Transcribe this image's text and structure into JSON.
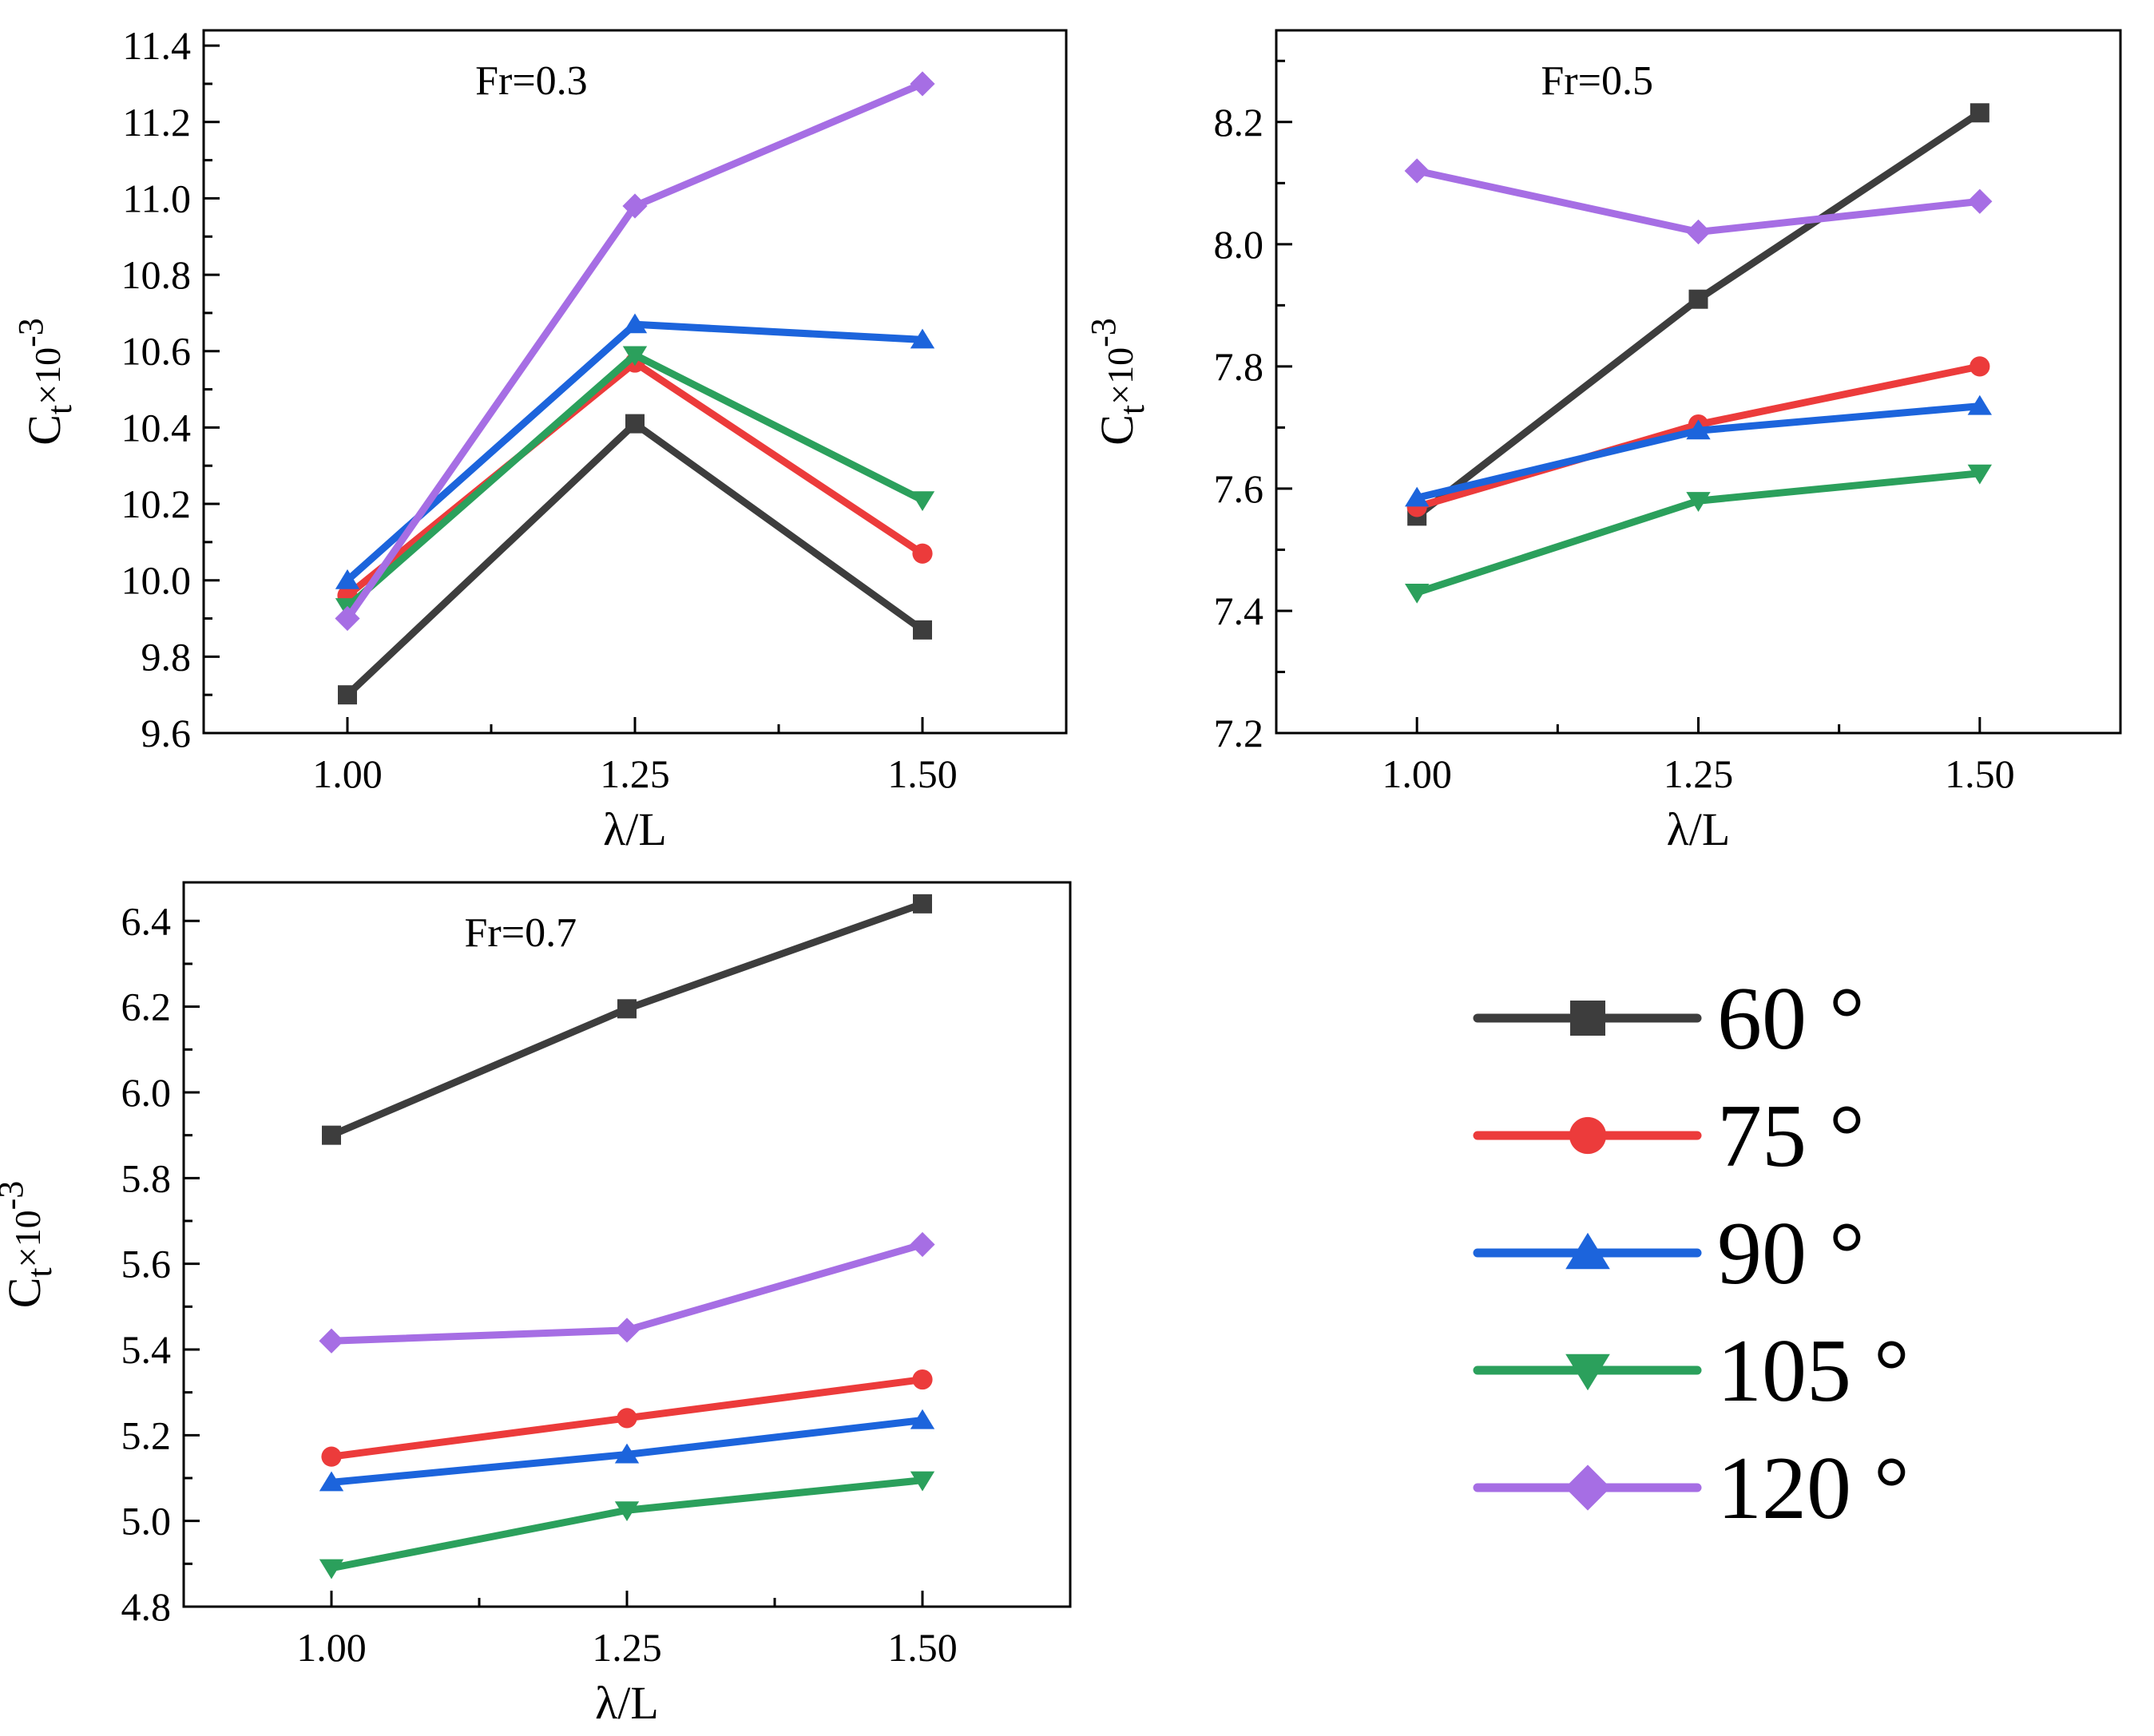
{
  "chart_data": [
    {
      "type": "line",
      "title": "Fr=0.3",
      "xlabel": "λ/L",
      "ylabel": "C",
      "ylabel_sub": "t",
      "ylabel_mid": "×10",
      "ylabel_sup": "-3",
      "x": [
        1.0,
        1.25,
        1.5
      ],
      "x_tick_labels": [
        "1.00",
        "1.25",
        "1.50"
      ],
      "xlim": [
        0.875,
        1.625
      ],
      "ylim": [
        9.6,
        11.44
      ],
      "y_ticks": [
        9.6,
        9.8,
        10.0,
        10.2,
        10.4,
        10.6,
        10.8,
        11.0,
        11.2,
        11.4
      ],
      "y_tick_labels": [
        "9.6",
        "9.8",
        "10.0",
        "10.2",
        "10.4",
        "10.6",
        "10.8",
        "11.0",
        "11.2",
        "11.4"
      ],
      "series": [
        {
          "name": "60 °",
          "values": [
            9.7,
            10.41,
            9.87
          ]
        },
        {
          "name": "75 °",
          "values": [
            9.96,
            10.57,
            10.07
          ]
        },
        {
          "name": "90 °",
          "values": [
            10.0,
            10.67,
            10.63
          ]
        },
        {
          "name": "105 °",
          "values": [
            9.93,
            10.59,
            10.21
          ]
        },
        {
          "name": "120 °",
          "values": [
            9.9,
            10.98,
            11.3
          ]
        }
      ]
    },
    {
      "type": "line",
      "title": "Fr=0.5",
      "xlabel": "λ/L",
      "ylabel": "C",
      "ylabel_sub": "t",
      "ylabel_mid": "×10",
      "ylabel_sup": "-3",
      "x": [
        1.0,
        1.25,
        1.5
      ],
      "x_tick_labels": [
        "1.00",
        "1.25",
        "1.50"
      ],
      "xlim": [
        0.875,
        1.625
      ],
      "ylim": [
        7.2,
        8.35
      ],
      "y_ticks": [
        7.2,
        7.4,
        7.6,
        7.8,
        8.0,
        8.2
      ],
      "y_tick_labels": [
        "7.2",
        "7.4",
        "7.6",
        "7.8",
        "8.0",
        "8.2"
      ],
      "series": [
        {
          "name": "60 °",
          "values": [
            7.555,
            7.91,
            8.215
          ]
        },
        {
          "name": "75 °",
          "values": [
            7.57,
            7.705,
            7.8
          ]
        },
        {
          "name": "90 °",
          "values": [
            7.585,
            7.695,
            7.735
          ]
        },
        {
          "name": "105 °",
          "values": [
            7.43,
            7.58,
            7.625
          ]
        },
        {
          "name": "120 °",
          "values": [
            8.12,
            8.02,
            8.07
          ]
        }
      ]
    },
    {
      "type": "line",
      "title": "Fr=0.7",
      "xlabel": "λ/L",
      "ylabel": "C",
      "ylabel_sub": "t",
      "ylabel_mid": "×10",
      "ylabel_sup": "-3",
      "x": [
        1.0,
        1.25,
        1.5
      ],
      "x_tick_labels": [
        "1.00",
        "1.25",
        "1.50"
      ],
      "xlim": [
        0.875,
        1.625
      ],
      "ylim": [
        4.8,
        6.49
      ],
      "y_ticks": [
        4.8,
        5.0,
        5.2,
        5.4,
        5.6,
        5.8,
        6.0,
        6.2,
        6.4
      ],
      "y_tick_labels": [
        "4.8",
        "5.0",
        "5.2",
        "5.4",
        "5.6",
        "5.8",
        "6.0",
        "6.2",
        "6.4"
      ],
      "series": [
        {
          "name": "60 °",
          "values": [
            5.9,
            6.195,
            6.44
          ]
        },
        {
          "name": "75 °",
          "values": [
            5.15,
            5.24,
            5.33
          ]
        },
        {
          "name": "90 °",
          "values": [
            5.09,
            5.155,
            5.235
          ]
        },
        {
          "name": "105 °",
          "values": [
            4.89,
            5.025,
            5.095
          ]
        },
        {
          "name": "120 °",
          "values": [
            5.42,
            5.445,
            5.645
          ]
        }
      ]
    }
  ],
  "legend": {
    "placement": "bottom-right",
    "items": [
      {
        "label": "60 °",
        "color": "#3d3d3d",
        "marker": "square"
      },
      {
        "label": "75 °",
        "color": "#ec3b3b",
        "marker": "circle"
      },
      {
        "label": "90 °",
        "color": "#1c64dc",
        "marker": "triangle-up"
      },
      {
        "label": "105 °",
        "color": "#2ba05c",
        "marker": "triangle-down"
      },
      {
        "label": "120 °",
        "color": "#a66ee4",
        "marker": "diamond"
      }
    ]
  }
}
